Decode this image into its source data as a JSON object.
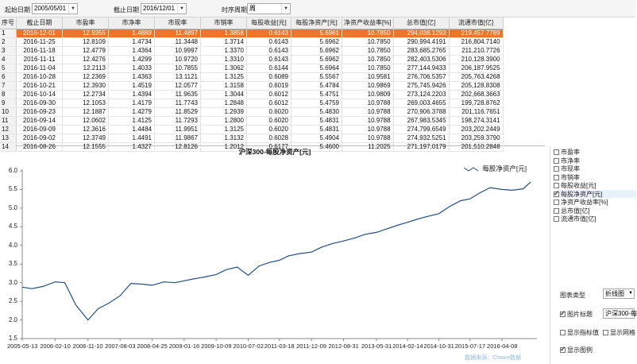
{
  "filter": {
    "start_label": "起始日期",
    "start_value": "2005/05/01",
    "end_label": "截止日期",
    "end_value": "2016/12/01",
    "period_label": "时序周期",
    "period_value": "周"
  },
  "table": {
    "headers": [
      "序号",
      "截止日期",
      "市盈率",
      "市净率",
      "市现率",
      "市销率",
      "每股收益[元]",
      "每股净资产[元]",
      "净资产收益率[%]",
      "总市值[亿]",
      "流通市值[亿]"
    ],
    "rows": [
      [
        "1",
        "2016-12-01",
        "12.9355",
        "1.4889",
        "11.4897",
        "1.3858",
        "0.6143",
        "5.6961",
        "10.7850",
        "294,038.1293",
        "219,457.7789"
      ],
      [
        "2",
        "2016-11-25",
        "12.8109",
        "1.4734",
        "11.3448",
        "1.3714",
        "0.6143",
        "5.6962",
        "10.7850",
        "290,994.4191",
        "216,804.7140"
      ],
      [
        "3",
        "2016-11-18",
        "12.4779",
        "1.4364",
        "10.9997",
        "1.3370",
        "0.6143",
        "5.6962",
        "10.7850",
        "283,685.2765",
        "211,210.7726"
      ],
      [
        "4",
        "2016-11-11",
        "12.4276",
        "1.4299",
        "10.9720",
        "1.3310",
        "0.6143",
        "5.6962",
        "10.7850",
        "282,403.5306",
        "210,128.3900"
      ],
      [
        "5",
        "2016-11-04",
        "12.2113",
        "1.4033",
        "10.7855",
        "1.3062",
        "0.6144",
        "5.6964",
        "10.7850",
        "277,144.9433",
        "206,187.9525"
      ],
      [
        "6",
        "2016-10-28",
        "12.2369",
        "1.4363",
        "13.1121",
        "1.3125",
        "0.6089",
        "5.5567",
        "10.9581",
        "276,706.5357",
        "205,763.4268"
      ],
      [
        "7",
        "2016-10-21",
        "12.3930",
        "1.4519",
        "12.0577",
        "1.3158",
        "0.6019",
        "5.4784",
        "10.9869",
        "275,745.9426",
        "205,128.8308"
      ],
      [
        "8",
        "2016-10-14",
        "12.2734",
        "1.4394",
        "11.9635",
        "1.3044",
        "0.6012",
        "5.4751",
        "10.9809",
        "273,124.2203",
        "202,668.3663"
      ],
      [
        "9",
        "2016-09-30",
        "12.1053",
        "1.4179",
        "11.7743",
        "1.2848",
        "0.6012",
        "5.4759",
        "10.9788",
        "269,003.4655",
        "199,728.8762"
      ],
      [
        "10",
        "2016-09-23",
        "12.1887",
        "1.4279",
        "11.8529",
        "1.2939",
        "0.6020",
        "5.4830",
        "10.9788",
        "270,906.3788",
        "201,116.7651"
      ],
      [
        "11",
        "2016-09-14",
        "12.0602",
        "1.4125",
        "11.7293",
        "1.2800",
        "0.6020",
        "5.4831",
        "10.9788",
        "267,983.5345",
        "198,274.3141"
      ],
      [
        "12",
        "2016-09-09",
        "12.3616",
        "1.4484",
        "11.9951",
        "1.3125",
        "0.6020",
        "5.4831",
        "10.9788",
        "274,799.6549",
        "203,202.2449"
      ],
      [
        "13",
        "2016-09-02",
        "12.3749",
        "1.4491",
        "11.9867",
        "1.3132",
        "0.6028",
        "5.4904",
        "10.9788",
        "274,932.5251",
        "203,259.3790"
      ],
      [
        "14",
        "2016-08-26",
        "12.1555",
        "1.4327",
        "12.8126",
        "1.2012",
        "0.6177",
        "5.4600",
        "11.2025",
        "271,197.0179",
        "201,510.2848"
      ]
    ]
  },
  "chart": {
    "title": "沪深300-每股净资产[元]",
    "legend": "每股净资产[元]",
    "line_color": "#1f4e8c",
    "watermark": "数据来源：Choice数据"
  },
  "chart_data": {
    "type": "line",
    "title": "沪深300-每股净资产[元]",
    "xlabel": "",
    "ylabel": "",
    "ylim": [
      1.5,
      6.0
    ],
    "yticks": [
      "6.0",
      "5.5",
      "5.0",
      "4.5",
      "4.0",
      "3.5",
      "3.0",
      "2.5",
      "2.0",
      "1.5"
    ],
    "xticks": [
      "2005-05-13",
      "2006-02-10",
      "2006-11-10",
      "2007-08-03",
      "2008-04-25",
      "2009-01-16",
      "2009-10-09",
      "2010-07-02",
      "2011-03-18",
      "2011-12-09",
      "2012-08-31",
      "2013-05-31",
      "2014-02-14",
      "2014-10-31",
      "2015-07-17",
      "2016-04-08"
    ],
    "legend_position": "top-right",
    "grid": false,
    "series": [
      {
        "name": "每股净资产[元]",
        "x": [
          "2005-05-13",
          "2005-08-01",
          "2005-11-01",
          "2006-02-10",
          "2006-05-01",
          "2006-08-01",
          "2006-11-10",
          "2007-02-01",
          "2007-05-01",
          "2007-08-03",
          "2007-11-01",
          "2008-02-01",
          "2008-04-25",
          "2008-08-01",
          "2008-11-01",
          "2009-01-16",
          "2009-04-01",
          "2009-07-01",
          "2009-10-09",
          "2010-01-01",
          "2010-04-01",
          "2010-07-02",
          "2010-10-01",
          "2011-01-01",
          "2011-03-18",
          "2011-06-01",
          "2011-09-01",
          "2011-12-09",
          "2012-03-01",
          "2012-06-01",
          "2012-08-31",
          "2012-12-01",
          "2013-03-01",
          "2013-05-31",
          "2013-09-01",
          "2013-12-01",
          "2014-02-14",
          "2014-05-01",
          "2014-08-01",
          "2014-10-31",
          "2015-02-01",
          "2015-05-01",
          "2015-07-17",
          "2015-10-01",
          "2016-01-01",
          "2016-04-08",
          "2016-07-01",
          "2016-10-01",
          "2016-12-01"
        ],
        "values": [
          2.88,
          2.84,
          2.9,
          3.02,
          3.0,
          2.4,
          2.0,
          2.3,
          2.45,
          2.65,
          2.98,
          2.96,
          2.93,
          3.02,
          3.0,
          3.05,
          3.1,
          3.15,
          3.22,
          3.35,
          3.42,
          3.2,
          3.45,
          3.55,
          3.6,
          3.72,
          3.78,
          3.82,
          3.95,
          4.05,
          4.12,
          4.2,
          4.3,
          4.35,
          4.45,
          4.55,
          4.62,
          4.7,
          4.78,
          4.85,
          5.05,
          5.2,
          5.25,
          5.4,
          5.55,
          5.5,
          5.48,
          5.52,
          5.7
        ]
      }
    ]
  },
  "side": {
    "series_options": [
      {
        "label": "市盈率",
        "checked": false
      },
      {
        "label": "市净率",
        "checked": false
      },
      {
        "label": "市现率",
        "checked": false
      },
      {
        "label": "市销率",
        "checked": false
      },
      {
        "label": "每股收益[元]",
        "checked": false
      },
      {
        "label": "每股净资产[元]",
        "checked": true
      },
      {
        "label": "净资产收益率[%]",
        "checked": false
      },
      {
        "label": "总市值[亿]",
        "checked": false
      },
      {
        "label": "流通市值[亿]",
        "checked": false
      }
    ],
    "chart_type_label": "图表类型",
    "chart_type_value": "折线图",
    "title_toggle_label": "图片标题",
    "title_toggle_value": "沪深300-每",
    "show_index_label": "显示指标值",
    "show_grid_label": "显示网格",
    "show_legend_label": "显示图例"
  }
}
